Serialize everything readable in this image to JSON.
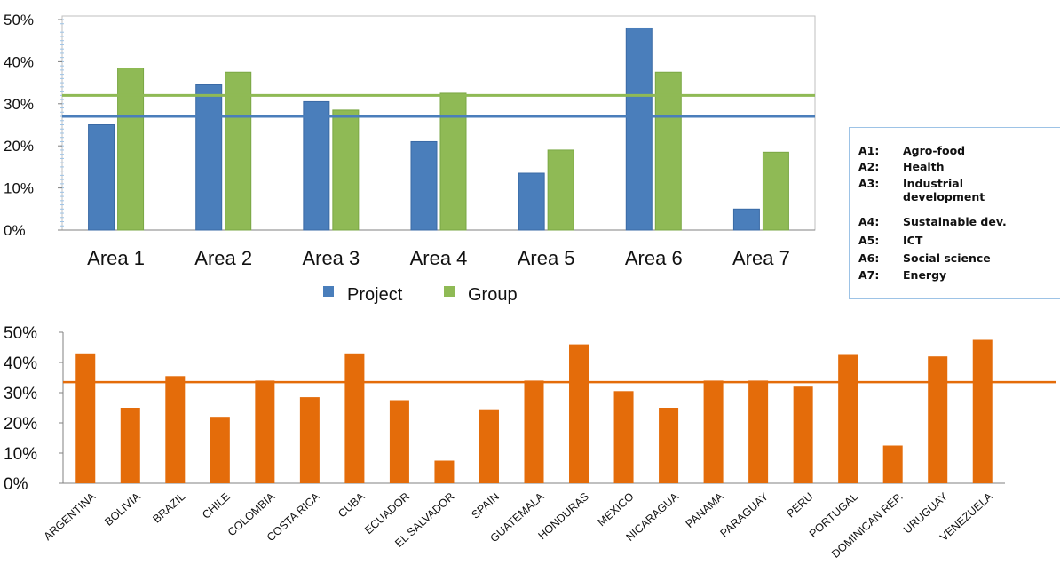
{
  "chart_data": [
    {
      "type": "bar",
      "categories": [
        "Area 1",
        "Area 2",
        "Area 3",
        "Area 4",
        "Area 5",
        "Area 6",
        "Area 7"
      ],
      "series": [
        {
          "name": "Project",
          "color": "#4a7ebb",
          "values": [
            25,
            34.5,
            30.5,
            21,
            13.5,
            48,
            5
          ]
        },
        {
          "name": "Group",
          "color": "#8fba55",
          "values": [
            38.5,
            37.5,
            28.5,
            32.5,
            19,
            37.5,
            18.5
          ]
        }
      ],
      "reference_lines": [
        {
          "series": "Group",
          "color": "#8fba55",
          "value": 32
        },
        {
          "series": "Project",
          "color": "#4a7ebb",
          "value": 27
        }
      ],
      "y_ticks": [
        "0%",
        "10%",
        "20%",
        "30%",
        "40%",
        "50%"
      ],
      "ylim": [
        0,
        50
      ],
      "legend": {
        "placement": "bottom",
        "items": [
          "Project",
          "Group"
        ]
      },
      "area_key": [
        {
          "code": "A1:",
          "name": "Agro-food"
        },
        {
          "code": "A2:",
          "name": "Health"
        },
        {
          "code": "A3:",
          "name": "Industrial development"
        },
        {
          "code": "A4:",
          "name": "Sustainable dev."
        },
        {
          "code": "A5:",
          "name": "ICT"
        },
        {
          "code": "A6:",
          "name": "Social science"
        },
        {
          "code": "A7:",
          "name": "Energy"
        }
      ]
    },
    {
      "type": "bar",
      "categories": [
        "ARGENTINA",
        "BOLIVIA",
        "BRAZIL",
        "CHILE",
        "COLOMBIA",
        "COSTA RICA",
        "CUBA",
        "ECUADOR",
        "EL SALVADOR",
        "SPAIN",
        "GUATEMALA",
        "HONDURAS",
        "MEXICO",
        "NICARAGUA",
        "PANAMA",
        "PARAGUAY",
        "PERU",
        "PORTUGAL",
        "DOMINICAN REP.",
        "URUGUAY",
        "VENEZUELA"
      ],
      "series": [
        {
          "color": "#e46c0a",
          "values": [
            43,
            25,
            35.5,
            22,
            34,
            28.5,
            43,
            27.5,
            7.5,
            24.5,
            34,
            46,
            30.5,
            25,
            34,
            34,
            32,
            42.5,
            12.5,
            42,
            47.5
          ]
        }
      ],
      "reference_lines": [
        {
          "color": "#e46c0a",
          "value": 33.5
        }
      ],
      "y_ticks": [
        "0%",
        "10%",
        "20%",
        "30%",
        "40%",
        "50%"
      ],
      "ylim": [
        0,
        50
      ]
    }
  ]
}
